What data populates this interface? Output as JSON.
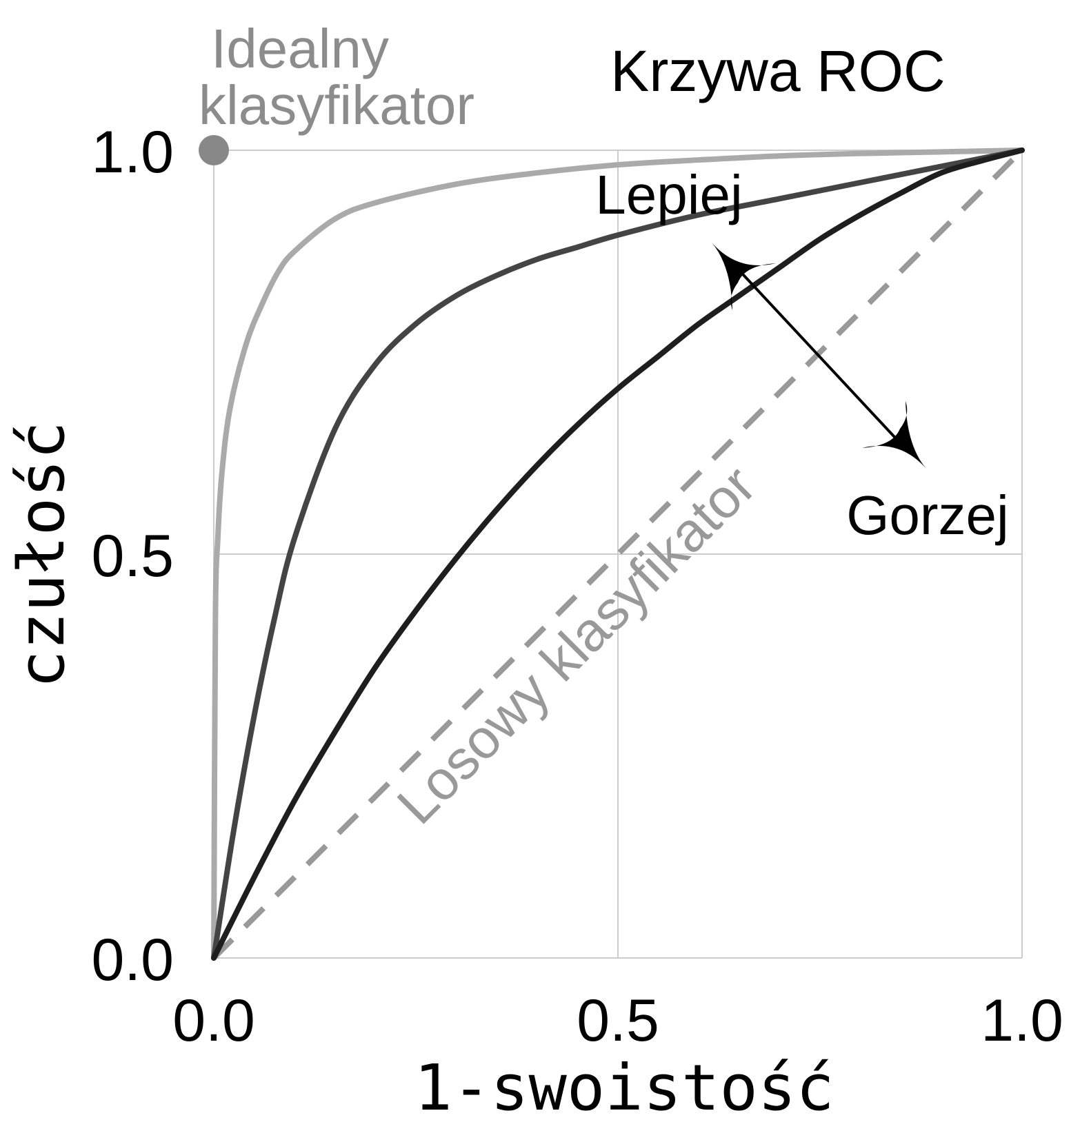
{
  "chart_data": {
    "type": "line",
    "title": "Krzywa ROC",
    "xlabel": "1-swoistość",
    "ylabel": "czułość",
    "xlim": [
      0,
      1
    ],
    "ylim": [
      0,
      1
    ],
    "x_ticks": [
      "0.0",
      "0.5",
      "1.0"
    ],
    "y_ticks": [
      "0.0",
      "0.5",
      "1.0"
    ],
    "grid": true,
    "series": [
      {
        "color": "#aaaaaa",
        "x": [
          0,
          0.002,
          0.005,
          0.01,
          0.02,
          0.04,
          0.06,
          0.08,
          0.1,
          0.15,
          0.2,
          0.3,
          0.4,
          0.5,
          0.6,
          0.7,
          0.8,
          0.9,
          1
        ],
        "y": [
          0,
          0.42,
          0.52,
          0.6,
          0.68,
          0.76,
          0.81,
          0.85,
          0.875,
          0.915,
          0.935,
          0.958,
          0.972,
          0.982,
          0.988,
          0.993,
          0.996,
          0.998,
          1
        ]
      },
      {
        "color": "#444444",
        "x": [
          0,
          0.025,
          0.05,
          0.075,
          0.1,
          0.15,
          0.2,
          0.25,
          0.3,
          0.35,
          0.4,
          0.45,
          0.5,
          0.6,
          0.7,
          0.8,
          0.9,
          1
        ],
        "y": [
          0,
          0.16,
          0.3,
          0.42,
          0.52,
          0.655,
          0.735,
          0.785,
          0.82,
          0.845,
          0.865,
          0.88,
          0.895,
          0.92,
          0.94,
          0.96,
          0.98,
          1
        ]
      },
      {
        "color": "#1e1e1e",
        "x": [
          0,
          0.05,
          0.1,
          0.15,
          0.2,
          0.25,
          0.3,
          0.35,
          0.4,
          0.45,
          0.5,
          0.55,
          0.6,
          0.65,
          0.7,
          0.75,
          0.8,
          0.85,
          0.9,
          0.95,
          1
        ],
        "y": [
          0,
          0.1,
          0.195,
          0.28,
          0.36,
          0.43,
          0.495,
          0.555,
          0.61,
          0.66,
          0.705,
          0.745,
          0.785,
          0.82,
          0.855,
          0.89,
          0.92,
          0.947,
          0.972,
          0.987,
          1
        ]
      }
    ],
    "reference_line": {
      "color": "#999999",
      "x": [
        0,
        1
      ],
      "y": [
        0,
        1
      ],
      "label": "Losowy klasyfikator"
    },
    "ideal_point": {
      "color": "#888888",
      "x": 0,
      "y": 1,
      "label_line1": "Idealny",
      "label_line2": "klasyfikator"
    },
    "annotations": {
      "better": "Lepiej",
      "worse": "Gorzej"
    }
  }
}
